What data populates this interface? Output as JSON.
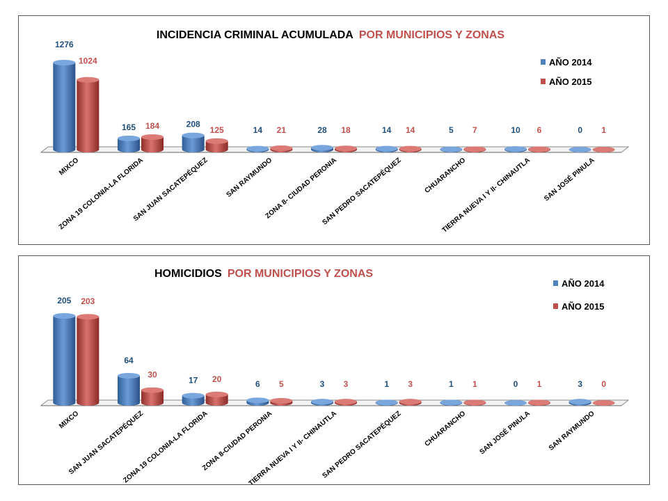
{
  "colors": {
    "series_2014": "#4f81bd",
    "series_2015": "#c0504d",
    "label_2014": "#1f4e79",
    "label_2015": "#c0504d",
    "title_accent": "#c0504d"
  },
  "chart_data": [
    {
      "type": "bar",
      "title_main": "INCIDENCIA CRIMINAL ACUMULADA",
      "title_accent": "POR  MUNICIPIOS Y ZONAS",
      "categories": [
        "MIXCO",
        "ZONA 19 COLONIA-LA FLORIDA",
        "SAN JUAN SACATEPÉQUEZ",
        "SAN RAYMUNDO",
        "ZONA 8- CIUDAD PERONIA",
        "SAN PEDRO SACATEPÉQUEZ",
        "CHUARANCHO",
        "TIERRA NUEVA I Y II- CHINAUTLA",
        "SAN JOSÉ PINULA"
      ],
      "series": [
        {
          "name": "AÑO 2014",
          "values": [
            1276,
            165,
            208,
            14,
            28,
            14,
            5,
            10,
            0
          ]
        },
        {
          "name": "AÑO 2015",
          "values": [
            1024,
            184,
            125,
            21,
            18,
            14,
            7,
            6,
            1
          ]
        }
      ],
      "legend_position": "top-right",
      "grid": false
    },
    {
      "type": "bar",
      "title_main": "HOMICIDIOS",
      "title_accent": "POR MUNICIPIOS Y ZONAS",
      "categories": [
        "MIXCO",
        "SAN JUAN SACATEPÉQUEZ",
        "ZONA 19 COLONIA-LA FLORIDA",
        "ZONA 8-CIUDAD PERONIA",
        "TIERRA NUEVA I Y II- CHINAUTLA",
        "SAN PEDRO SACATEPÉQUEZ",
        "CHUARANCHO",
        "SAN JOSÉ PINULA",
        "SAN RAYMUNDO"
      ],
      "series": [
        {
          "name": "AÑO 2014",
          "values": [
            205,
            64,
            17,
            6,
            3,
            1,
            1,
            0,
            3
          ]
        },
        {
          "name": "AÑO 2015",
          "values": [
            203,
            30,
            20,
            5,
            3,
            3,
            1,
            1,
            0
          ]
        }
      ],
      "legend_position": "top-right",
      "grid": false
    }
  ]
}
